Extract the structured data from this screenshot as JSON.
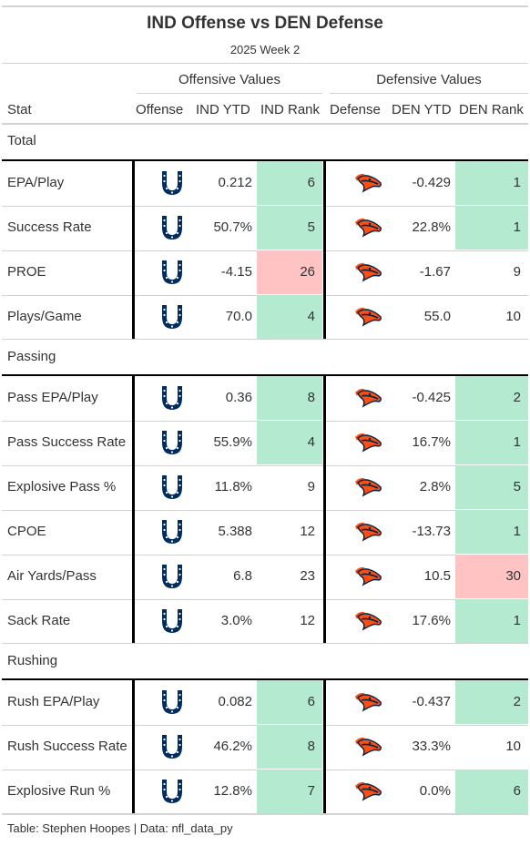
{
  "header": {
    "title": "IND Offense vs DEN Defense",
    "subtitle": "2025 Week 2"
  },
  "spanners": {
    "offensive": "Offensive Values",
    "defensive": "Defensive Values"
  },
  "columns": {
    "stat": "Stat",
    "offense": "Offense",
    "ind_ytd": "IND YTD",
    "ind_rank": "IND Rank",
    "defense": "Defense",
    "den_ytd": "DEN YTD",
    "den_rank": "DEN Rank"
  },
  "colors": {
    "good_rank": "#b3ead0",
    "bad_rank": "#ffc3c3",
    "colts_blue": "#002c5f",
    "broncos_orange": "#fb4f14",
    "broncos_navy": "#002244"
  },
  "icons": {
    "offense_logo": "colts-horseshoe-icon",
    "defense_logo": "broncos-horse-head-icon"
  },
  "groups": [
    {
      "label": "Total",
      "rows": [
        {
          "stat": "EPA/Play",
          "ind_ytd": "0.212",
          "ind_rank": "6",
          "ind_rank_color": "good",
          "den_ytd": "-0.429",
          "den_rank": "1",
          "den_rank_color": "good"
        },
        {
          "stat": "Success Rate",
          "ind_ytd": "50.7%",
          "ind_rank": "5",
          "ind_rank_color": "good",
          "den_ytd": "22.8%",
          "den_rank": "1",
          "den_rank_color": "good"
        },
        {
          "stat": "PROE",
          "ind_ytd": "-4.15",
          "ind_rank": "26",
          "ind_rank_color": "bad",
          "den_ytd": "-1.67",
          "den_rank": "9",
          "den_rank_color": "none"
        },
        {
          "stat": "Plays/Game",
          "ind_ytd": "70.0",
          "ind_rank": "4",
          "ind_rank_color": "good",
          "den_ytd": "55.0",
          "den_rank": "10",
          "den_rank_color": "none"
        }
      ]
    },
    {
      "label": "Passing",
      "rows": [
        {
          "stat": "Pass EPA/Play",
          "ind_ytd": "0.36",
          "ind_rank": "8",
          "ind_rank_color": "good",
          "den_ytd": "-0.425",
          "den_rank": "2",
          "den_rank_color": "good"
        },
        {
          "stat": "Pass Success Rate",
          "ind_ytd": "55.9%",
          "ind_rank": "4",
          "ind_rank_color": "good",
          "den_ytd": "16.7%",
          "den_rank": "1",
          "den_rank_color": "good"
        },
        {
          "stat": "Explosive Pass %",
          "ind_ytd": "11.8%",
          "ind_rank": "9",
          "ind_rank_color": "none",
          "den_ytd": "2.8%",
          "den_rank": "5",
          "den_rank_color": "good"
        },
        {
          "stat": "CPOE",
          "ind_ytd": "5.388",
          "ind_rank": "12",
          "ind_rank_color": "none",
          "den_ytd": "-13.73",
          "den_rank": "1",
          "den_rank_color": "good"
        },
        {
          "stat": "Air Yards/Pass",
          "ind_ytd": "6.8",
          "ind_rank": "23",
          "ind_rank_color": "none",
          "den_ytd": "10.5",
          "den_rank": "30",
          "den_rank_color": "bad"
        },
        {
          "stat": "Sack Rate",
          "ind_ytd": "3.0%",
          "ind_rank": "12",
          "ind_rank_color": "none",
          "den_ytd": "17.6%",
          "den_rank": "1",
          "den_rank_color": "good"
        }
      ]
    },
    {
      "label": "Rushing",
      "rows": [
        {
          "stat": "Rush EPA/Play",
          "ind_ytd": "0.082",
          "ind_rank": "6",
          "ind_rank_color": "good",
          "den_ytd": "-0.437",
          "den_rank": "2",
          "den_rank_color": "good"
        },
        {
          "stat": "Rush Success Rate",
          "ind_ytd": "46.2%",
          "ind_rank": "8",
          "ind_rank_color": "good",
          "den_ytd": "33.3%",
          "den_rank": "10",
          "den_rank_color": "none"
        },
        {
          "stat": "Explosive Run %",
          "ind_ytd": "12.8%",
          "ind_rank": "7",
          "ind_rank_color": "good",
          "den_ytd": "0.0%",
          "den_rank": "6",
          "den_rank_color": "good"
        }
      ]
    }
  ],
  "footer": "Table: Stephen Hoopes | Data: nfl_data_py"
}
